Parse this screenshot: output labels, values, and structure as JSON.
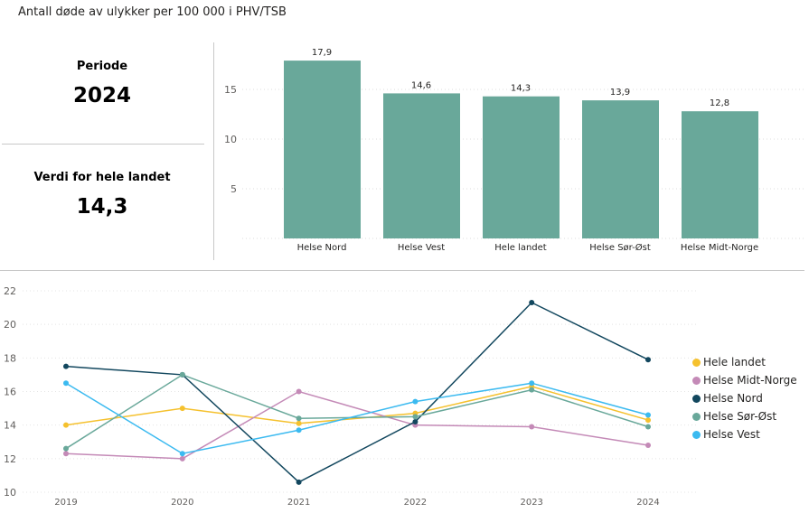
{
  "title": "Antall døde av ulykker per 100 000 i PHV/TSB",
  "cards": {
    "period_label": "Periode",
    "period_value": "2024",
    "national_label": "Verdi for hele landet",
    "national_value": "14,3"
  },
  "chart_data": [
    {
      "type": "bar",
      "categories": [
        "Helse Nord",
        "Helse Vest",
        "Hele landet",
        "Helse Sør-Øst",
        "Helse Midt-Norge"
      ],
      "values": [
        17.9,
        14.6,
        14.3,
        13.9,
        12.8
      ],
      "value_labels": [
        "17,9",
        "14,6",
        "14,3",
        "13,9",
        "12,8"
      ],
      "yticks": [
        "5",
        "10",
        "15"
      ],
      "ylim": [
        0,
        18
      ],
      "grid": true,
      "color": "#69A89A"
    },
    {
      "type": "line",
      "x": [
        "2019",
        "2020",
        "2021",
        "2022",
        "2023",
        "2024"
      ],
      "yticks": [
        "10",
        "12",
        "14",
        "16",
        "18",
        "20",
        "22"
      ],
      "ylim": [
        10,
        22
      ],
      "grid": true,
      "legend_position": "right",
      "series": [
        {
          "name": "Hele landet",
          "color": "#F5C12E",
          "values": [
            14.0,
            15.0,
            14.1,
            14.7,
            16.3,
            14.3
          ]
        },
        {
          "name": "Helse Midt-Norge",
          "color": "#C48AB7",
          "values": [
            12.3,
            12.0,
            16.0,
            14.0,
            13.9,
            12.8
          ]
        },
        {
          "name": "Helse Nord",
          "color": "#12475E",
          "values": [
            17.5,
            17.0,
            10.6,
            14.2,
            21.3,
            17.9
          ]
        },
        {
          "name": "Helse Sør-Øst",
          "color": "#69A89A",
          "values": [
            12.6,
            17.0,
            14.4,
            14.5,
            16.1,
            13.9
          ]
        },
        {
          "name": "Helse Vest",
          "color": "#3BBAF0",
          "values": [
            16.5,
            12.3,
            13.7,
            15.4,
            16.5,
            14.6
          ]
        }
      ]
    }
  ]
}
